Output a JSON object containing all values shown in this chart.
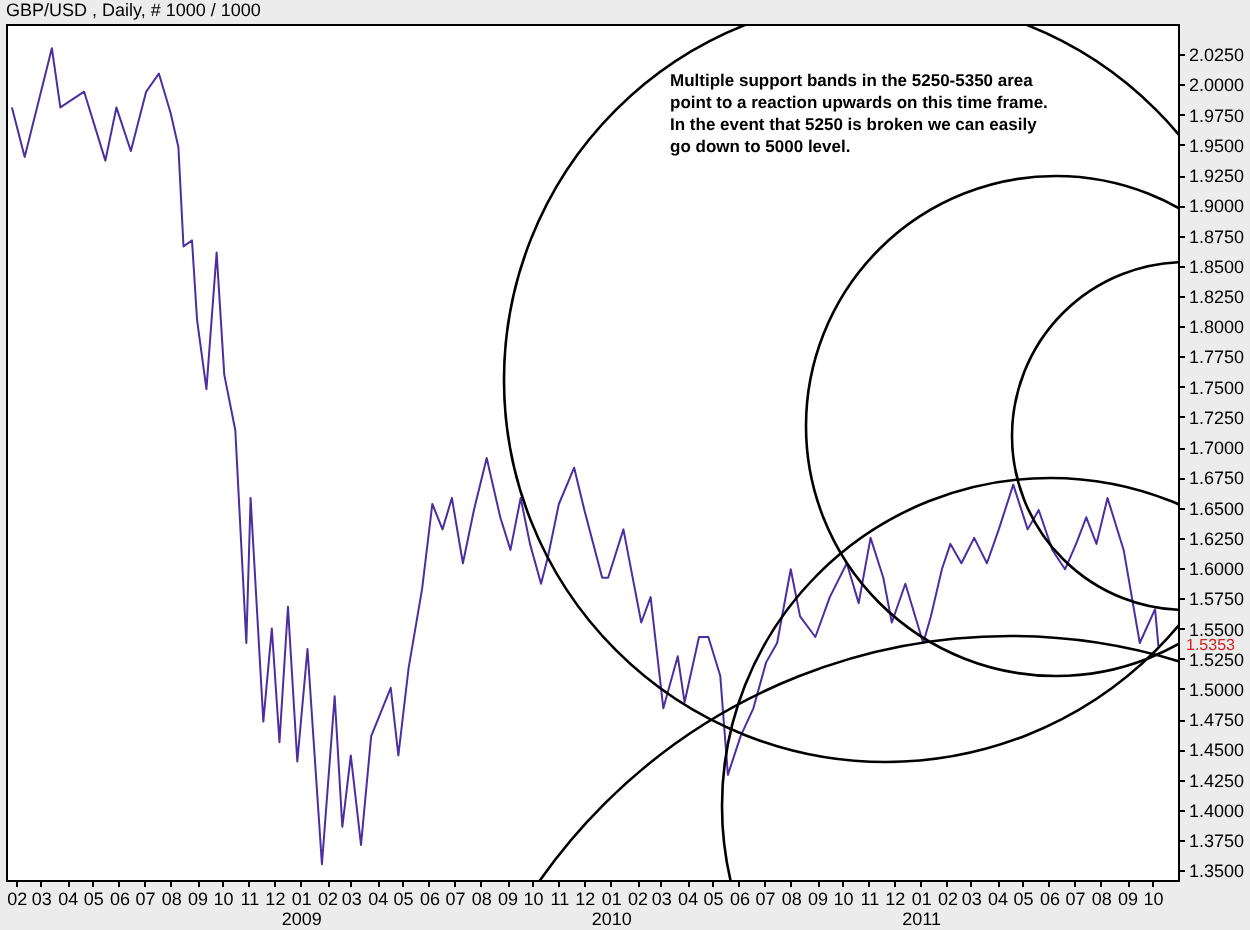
{
  "chart_data": {
    "type": "line",
    "title": "GBP/USD , Daily, # 1000 / 1000",
    "annotations": [
      "Multiple support bands in the 5250-5350 area\npoint to a reaction upwards on this time frame.\n In the event that 5250 is broken we can easily\ngo down to 5000 level.",
      {
        "text": "1.5353",
        "x": "2011-10-08",
        "y": 1.5353
      }
    ],
    "x": [
      "2008-01-27",
      "2008-02-11",
      "2008-03-14",
      "2008-03-24",
      "2008-04-21",
      "2008-05-16",
      "2008-05-29",
      "2008-06-15",
      "2008-07-03",
      "2008-07-18",
      "2008-08-01",
      "2008-08-10",
      "2008-08-16",
      "2008-08-26",
      "2008-09-01",
      "2008-09-12",
      "2008-09-24",
      "2008-10-03",
      "2008-10-16",
      "2008-10-29",
      "2008-11-03",
      "2008-11-18",
      "2008-11-28",
      "2008-12-07",
      "2008-12-17",
      "2008-12-28",
      "2009-01-09",
      "2009-01-26",
      "2009-02-10",
      "2009-02-19",
      "2009-03-01",
      "2009-03-13",
      "2009-03-25",
      "2009-04-17",
      "2009-04-26",
      "2009-05-08",
      "2009-05-24",
      "2009-06-05",
      "2009-06-17",
      "2009-06-28",
      "2009-07-11",
      "2009-07-24",
      "2009-08-08",
      "2009-08-24",
      "2009-09-05",
      "2009-09-17",
      "2009-09-28",
      "2009-10-11",
      "2009-10-19",
      "2009-11-01",
      "2009-11-19",
      "2009-12-01",
      "2009-12-22",
      "2009-12-29",
      "2010-01-16",
      "2010-02-06",
      "2010-02-17",
      "2010-03-04",
      "2010-03-21",
      "2010-03-29",
      "2010-04-15",
      "2010-04-26",
      "2010-05-10",
      "2010-05-19",
      "2010-06-03",
      "2010-06-18",
      "2010-07-03",
      "2010-07-16",
      "2010-08-01",
      "2010-08-12",
      "2010-08-30",
      "2010-09-16",
      "2010-10-06",
      "2010-10-20",
      "2010-11-03",
      "2010-11-18",
      "2010-11-28",
      "2010-12-14",
      "2011-01-04",
      "2011-01-13",
      "2011-01-26",
      "2011-02-05",
      "2011-02-18",
      "2011-03-05",
      "2011-03-20",
      "2011-04-03",
      "2011-04-20",
      "2011-05-07",
      "2011-05-20",
      "2011-06-05",
      "2011-06-20",
      "2011-07-03",
      "2011-07-15",
      "2011-07-27",
      "2011-08-09",
      "2011-08-28",
      "2011-09-16",
      "2011-10-04",
      "2011-10-08"
    ],
    "series": [
      {
        "color": "#4a2fa0",
        "values": [
          1.981,
          1.94,
          2.03,
          1.981,
          1.994,
          1.937,
          1.981,
          1.945,
          1.994,
          2.009,
          1.976,
          1.948,
          1.866,
          1.871,
          1.805,
          1.748,
          1.861,
          1.76,
          1.714,
          1.538,
          1.658,
          1.473,
          1.55,
          1.456,
          1.568,
          1.44,
          1.533,
          1.355,
          1.494,
          1.386,
          1.445,
          1.371,
          1.461,
          1.501,
          1.445,
          1.517,
          1.583,
          1.653,
          1.632,
          1.658,
          1.604,
          1.648,
          1.691,
          1.642,
          1.615,
          1.658,
          1.62,
          1.587,
          1.609,
          1.653,
          1.683,
          1.648,
          1.592,
          1.592,
          1.632,
          1.555,
          1.576,
          1.484,
          1.527,
          1.489,
          1.543,
          1.543,
          1.511,
          1.429,
          1.461,
          1.484,
          1.522,
          1.538,
          1.599,
          1.56,
          1.543,
          1.576,
          1.604,
          1.571,
          1.625,
          1.592,
          1.555,
          1.587,
          1.538,
          1.56,
          1.599,
          1.62,
          1.604,
          1.625,
          1.604,
          1.632,
          1.669,
          1.632,
          1.648,
          1.615,
          1.599,
          1.62,
          1.642,
          1.62,
          1.658,
          1.615,
          1.538,
          1.566,
          1.535
        ]
      }
    ],
    "xlim": [
      "2008-01-20",
      "2011-10-31"
    ],
    "xticks": [
      {
        "value": "2008-02",
        "label": "02"
      },
      {
        "value": "2008-03",
        "label": "03"
      },
      {
        "value": "2008-04",
        "label": "04"
      },
      {
        "value": "2008-05",
        "label": "05"
      },
      {
        "value": "2008-06",
        "label": "06"
      },
      {
        "value": "2008-07",
        "label": "07"
      },
      {
        "value": "2008-08",
        "label": "08"
      },
      {
        "value": "2008-09",
        "label": "09"
      },
      {
        "value": "2008-10",
        "label": "10"
      },
      {
        "value": "2008-11",
        "label": "11"
      },
      {
        "value": "2008-12",
        "label": "12"
      },
      {
        "value": "2009-01",
        "label": "01\n2009"
      },
      {
        "value": "2009-02",
        "label": "02"
      },
      {
        "value": "2009-03",
        "label": "03"
      },
      {
        "value": "2009-04",
        "label": "04"
      },
      {
        "value": "2009-05",
        "label": "05"
      },
      {
        "value": "2009-06",
        "label": "06"
      },
      {
        "value": "2009-07",
        "label": "07"
      },
      {
        "value": "2009-08",
        "label": "08"
      },
      {
        "value": "2009-09",
        "label": "09"
      },
      {
        "value": "2009-10",
        "label": "10"
      },
      {
        "value": "2009-11",
        "label": "11"
      },
      {
        "value": "2009-12",
        "label": "12"
      },
      {
        "value": "2010-01",
        "label": "01\n2010"
      },
      {
        "value": "2010-02",
        "label": "02"
      },
      {
        "value": "2010-03",
        "label": "03"
      },
      {
        "value": "2010-04",
        "label": "04"
      },
      {
        "value": "2010-05",
        "label": "05"
      },
      {
        "value": "2010-06",
        "label": "06"
      },
      {
        "value": "2010-07",
        "label": "07"
      },
      {
        "value": "2010-08",
        "label": "08"
      },
      {
        "value": "2010-09",
        "label": "09"
      },
      {
        "value": "2010-10",
        "label": "10"
      },
      {
        "value": "2010-11",
        "label": "11"
      },
      {
        "value": "2010-12",
        "label": "12"
      },
      {
        "value": "2011-01",
        "label": "01\n2011"
      },
      {
        "value": "2011-02",
        "label": "02"
      },
      {
        "value": "2011-03",
        "label": "03"
      },
      {
        "value": "2011-04",
        "label": "04"
      },
      {
        "value": "2011-05",
        "label": "05"
      },
      {
        "value": "2011-06",
        "label": "06"
      },
      {
        "value": "2011-07",
        "label": "07"
      },
      {
        "value": "2011-08",
        "label": "08"
      },
      {
        "value": "2011-09",
        "label": "09"
      },
      {
        "value": "2011-10",
        "label": "10"
      }
    ],
    "ylim": [
      1.342,
      2.05
    ],
    "yticks": [
      {
        "value": 1.35,
        "label": "1.3500"
      },
      {
        "value": 1.375,
        "label": "1.3750"
      },
      {
        "value": 1.4,
        "label": "1.4000"
      },
      {
        "value": 1.425,
        "label": "1.4250"
      },
      {
        "value": 1.45,
        "label": "1.4500"
      },
      {
        "value": 1.475,
        "label": "1.4750"
      },
      {
        "value": 1.5,
        "label": "1.5000"
      },
      {
        "value": 1.525,
        "label": "1.5250"
      },
      {
        "value": 1.55,
        "label": "1.5500"
      },
      {
        "value": 1.575,
        "label": "1.5750"
      },
      {
        "value": 1.6,
        "label": "1.6000"
      },
      {
        "value": 1.625,
        "label": "1.6250"
      },
      {
        "value": 1.65,
        "label": "1.6500"
      },
      {
        "value": 1.675,
        "label": "1.6750"
      },
      {
        "value": 1.7,
        "label": "1.7000"
      },
      {
        "value": 1.725,
        "label": "1.7250"
      },
      {
        "value": 1.75,
        "label": "1.7500"
      },
      {
        "value": 1.775,
        "label": "1.7750"
      },
      {
        "value": 1.8,
        "label": "1.8000"
      },
      {
        "value": 1.825,
        "label": "1.8250"
      },
      {
        "value": 1.85,
        "label": "1.8500"
      },
      {
        "value": 1.875,
        "label": "1.8750"
      },
      {
        "value": 1.9,
        "label": "1.9000"
      },
      {
        "value": 1.925,
        "label": "1.9250"
      },
      {
        "value": 1.95,
        "label": "1.9500"
      },
      {
        "value": 1.975,
        "label": "1.9750"
      },
      {
        "value": 2.0,
        "label": "2.0000"
      },
      {
        "value": 2.025,
        "label": "2.0250"
      }
    ],
    "grid": false
  }
}
